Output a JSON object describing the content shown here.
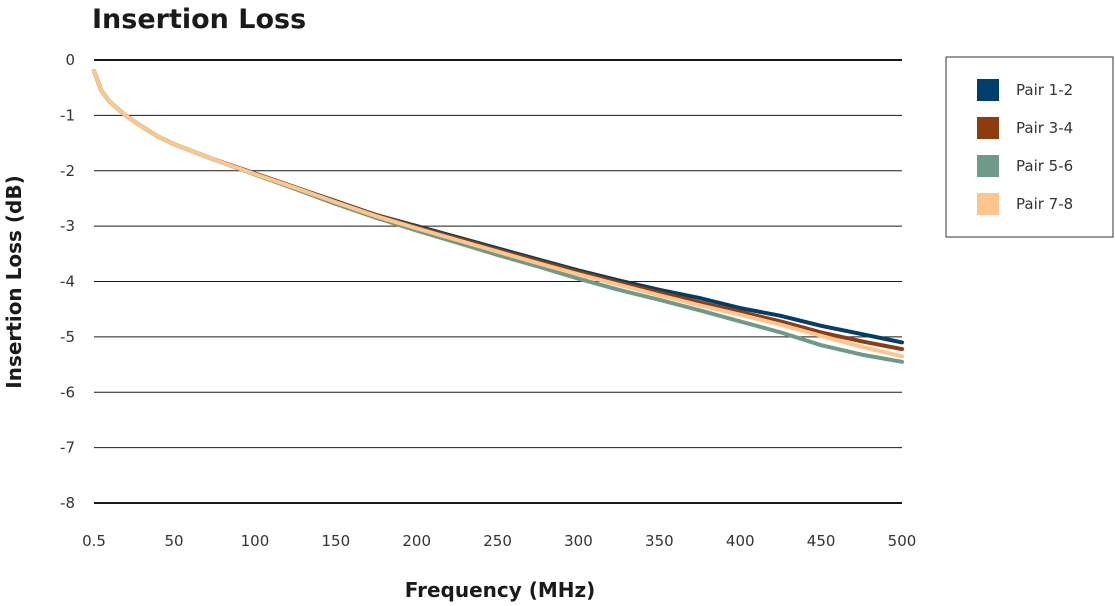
{
  "chart_data": {
    "type": "line",
    "title": "Insertion Loss",
    "xlabel": "Frequency (MHz)",
    "ylabel": "Insertion Loss (dB)",
    "xlim": [
      0.5,
      500
    ],
    "ylim": [
      -8,
      0
    ],
    "xticks": [
      0.5,
      50,
      100,
      150,
      200,
      250,
      300,
      350,
      400,
      450,
      500
    ],
    "xtick_labels": [
      "0.5",
      "50",
      "100",
      "150",
      "200",
      "250",
      "300",
      "350",
      "400",
      "450",
      "500"
    ],
    "yticks": [
      0,
      -1,
      -2,
      -3,
      -4,
      -5,
      -6,
      -7,
      -8
    ],
    "ytick_labels": [
      "0",
      "-1",
      "-2",
      "-3",
      "-4",
      "-5",
      "-6",
      "-7",
      "-8"
    ],
    "grid": "horizontal",
    "legend_position": "right",
    "x": [
      0.5,
      5,
      10,
      20,
      30,
      40,
      50,
      75,
      100,
      125,
      150,
      175,
      200,
      225,
      250,
      275,
      300,
      325,
      350,
      375,
      400,
      425,
      450,
      475,
      500
    ],
    "series": [
      {
        "name": "Pair 1-2",
        "color": "#003f6b",
        "values": [
          -0.2,
          -0.55,
          -0.75,
          -1.0,
          -1.2,
          -1.38,
          -1.52,
          -1.8,
          -2.05,
          -2.3,
          -2.55,
          -2.8,
          -3.0,
          -3.2,
          -3.4,
          -3.6,
          -3.8,
          -3.98,
          -4.15,
          -4.3,
          -4.48,
          -4.62,
          -4.8,
          -4.95,
          -5.1
        ]
      },
      {
        "name": "Pair 3-4",
        "color": "#8f3b10",
        "values": [
          -0.2,
          -0.55,
          -0.75,
          -1.0,
          -1.2,
          -1.38,
          -1.52,
          -1.8,
          -2.05,
          -2.3,
          -2.56,
          -2.8,
          -3.02,
          -3.22,
          -3.43,
          -3.63,
          -3.83,
          -4.02,
          -4.2,
          -4.38,
          -4.55,
          -4.72,
          -4.92,
          -5.08,
          -5.22
        ]
      },
      {
        "name": "Pair 5-6",
        "color": "#6f9a8a",
        "values": [
          -0.2,
          -0.55,
          -0.75,
          -1.0,
          -1.2,
          -1.38,
          -1.52,
          -1.8,
          -2.07,
          -2.33,
          -2.6,
          -2.85,
          -3.08,
          -3.3,
          -3.52,
          -3.73,
          -3.95,
          -4.15,
          -4.33,
          -4.52,
          -4.72,
          -4.92,
          -5.15,
          -5.32,
          -5.45
        ]
      },
      {
        "name": "Pair 7-8",
        "color": "#fcc68c",
        "values": [
          -0.2,
          -0.55,
          -0.75,
          -1.0,
          -1.2,
          -1.38,
          -1.52,
          -1.8,
          -2.06,
          -2.31,
          -2.57,
          -2.82,
          -3.04,
          -3.25,
          -3.46,
          -3.67,
          -3.87,
          -4.06,
          -4.25,
          -4.43,
          -4.6,
          -4.78,
          -4.98,
          -5.18,
          -5.35
        ]
      }
    ]
  }
}
